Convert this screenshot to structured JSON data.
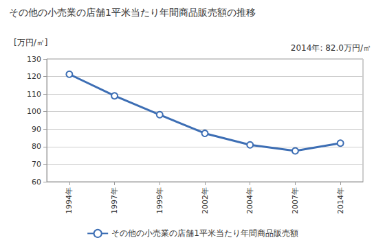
{
  "chart_data": {
    "type": "line",
    "title": "その他の小売業の店舗1平米当たり年間商品販売額の推移",
    "ylabel": "[万円/㎡]",
    "annotations": [
      "2014年: 82.0万円/㎡"
    ],
    "categories": [
      "1994年",
      "1997年",
      "1999年",
      "2002年",
      "2004年",
      "2007年",
      "2014年"
    ],
    "series": [
      {
        "name": "その他の小売業の店舗1平米当たり年間商品販売額",
        "color": "#3d6eb4",
        "marker": "circle",
        "values": [
          121.3,
          109.0,
          98.2,
          87.6,
          81.0,
          77.6,
          82.0
        ]
      }
    ],
    "ylim": [
      60,
      130
    ],
    "yticks": [
      60,
      70,
      80,
      90,
      100,
      110,
      120,
      130
    ],
    "grid": true,
    "legend": "bottom"
  }
}
